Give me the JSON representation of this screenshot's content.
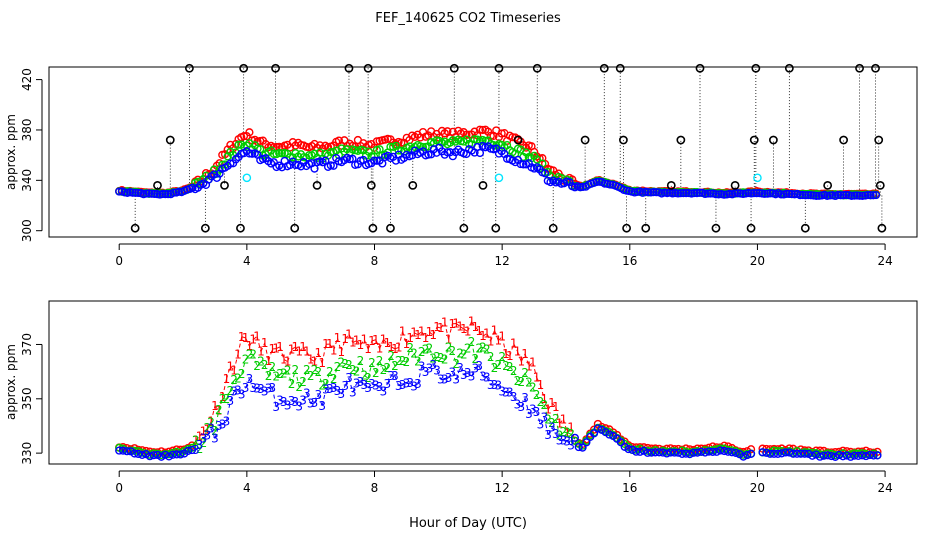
{
  "figure": {
    "title": "FEF_140625  CO2 Timeseries",
    "xlabel": "Hour of Day (UTC)"
  },
  "colors": {
    "series1": "#ff0000",
    "series2": "#00cc00",
    "series3": "#0000ff",
    "flagged": "#000000",
    "cyan": "#00e5ff"
  },
  "chart_data": [
    {
      "type": "scatter",
      "panel": "top",
      "ylabel": "approx. ppm",
      "xlim": [
        -2.2,
        25
      ],
      "ylim": [
        295,
        430
      ],
      "xticks": [
        0,
        4,
        8,
        12,
        16,
        20,
        24
      ],
      "yticks": [
        300,
        340,
        380,
        420
      ],
      "grid": false,
      "legend": "none",
      "profile": [
        [
          0,
          331
        ],
        [
          0.5,
          330
        ],
        [
          1,
          329
        ],
        [
          1.5,
          329
        ],
        [
          2,
          331
        ],
        [
          2.5,
          336
        ],
        [
          3,
          343
        ],
        [
          3.5,
          355
        ],
        [
          4,
          363
        ],
        [
          4.5,
          355
        ],
        [
          5,
          353
        ],
        [
          5.5,
          354
        ],
        [
          6,
          352
        ],
        [
          6.5,
          353
        ],
        [
          7,
          356
        ],
        [
          7.5,
          355
        ],
        [
          8,
          354
        ],
        [
          8.5,
          357
        ],
        [
          9,
          359
        ],
        [
          9.5,
          362
        ],
        [
          10,
          363
        ],
        [
          10.5,
          362
        ],
        [
          11,
          364
        ],
        [
          11.5,
          365
        ],
        [
          12,
          362
        ],
        [
          12.5,
          356
        ],
        [
          13,
          351
        ],
        [
          13.5,
          340
        ],
        [
          14,
          337
        ],
        [
          14.5,
          334
        ],
        [
          15,
          339
        ],
        [
          15.5,
          336
        ],
        [
          16,
          331
        ],
        [
          17,
          330
        ],
        [
          18,
          330
        ],
        [
          19,
          329
        ],
        [
          20,
          330
        ],
        [
          21,
          329
        ],
        [
          22,
          328
        ],
        [
          23,
          328
        ],
        [
          23.8,
          328
        ]
      ],
      "flagged_points": [
        [
          0.5,
          302
        ],
        [
          1.2,
          336
        ],
        [
          1.6,
          372
        ],
        [
          2.2,
          429
        ],
        [
          2.7,
          302
        ],
        [
          3.3,
          336
        ],
        [
          3.8,
          302
        ],
        [
          3.9,
          429
        ],
        [
          4.9,
          429
        ],
        [
          5.5,
          302
        ],
        [
          6.2,
          336
        ],
        [
          7.2,
          429
        ],
        [
          7.8,
          429
        ],
        [
          7.9,
          336
        ],
        [
          7.95,
          302
        ],
        [
          8.5,
          302
        ],
        [
          9.2,
          336
        ],
        [
          10.5,
          429
        ],
        [
          10.8,
          302
        ],
        [
          11.4,
          336
        ],
        [
          11.8,
          302
        ],
        [
          11.9,
          429
        ],
        [
          12.5,
          372
        ],
        [
          13.1,
          429
        ],
        [
          13.6,
          302
        ],
        [
          14.6,
          372
        ],
        [
          15.2,
          429
        ],
        [
          15.7,
          429
        ],
        [
          15.8,
          372
        ],
        [
          15.9,
          302
        ],
        [
          16.5,
          302
        ],
        [
          17.3,
          336
        ],
        [
          17.6,
          372
        ],
        [
          18.2,
          429
        ],
        [
          18.7,
          302
        ],
        [
          19.3,
          336
        ],
        [
          19.8,
          302
        ],
        [
          19.9,
          372
        ],
        [
          19.95,
          429
        ],
        [
          20.5,
          372
        ],
        [
          21,
          429
        ],
        [
          21.5,
          302
        ],
        [
          22.2,
          336
        ],
        [
          22.7,
          372
        ],
        [
          23.2,
          429
        ],
        [
          23.7,
          429
        ],
        [
          23.8,
          372
        ],
        [
          23.85,
          336
        ],
        [
          23.9,
          302
        ]
      ],
      "cyan_points": [
        [
          4,
          342
        ],
        [
          11.9,
          342
        ],
        [
          20,
          342
        ]
      ],
      "series": [
        {
          "name": "1",
          "color": "#ff0000",
          "offset_day": 14,
          "offset_night": 1
        },
        {
          "name": "2",
          "color": "#00cc00",
          "offset_day": 7,
          "offset_night": 0.5
        },
        {
          "name": "3",
          "color": "#0000ff",
          "offset_day": 0,
          "offset_night": 0
        }
      ]
    },
    {
      "type": "scatter",
      "panel": "bottom",
      "ylabel": "approx. ppm",
      "xlim": [
        -2.2,
        25
      ],
      "ylim": [
        326,
        386
      ],
      "xticks": [
        0,
        4,
        8,
        12,
        16,
        20,
        24
      ],
      "yticks": [
        330,
        350,
        370
      ],
      "grid": false,
      "legend": "none",
      "profile": [
        [
          0,
          331
        ],
        [
          0.5,
          330
        ],
        [
          1,
          329
        ],
        [
          1.5,
          329
        ],
        [
          2,
          330
        ],
        [
          2.5,
          332
        ],
        [
          3,
          337
        ],
        [
          3.5,
          348
        ],
        [
          4,
          357
        ],
        [
          4.5,
          352
        ],
        [
          5,
          350
        ],
        [
          5.5,
          350
        ],
        [
          6,
          349
        ],
        [
          6.5,
          351
        ],
        [
          7,
          355
        ],
        [
          7.5,
          354
        ],
        [
          8,
          352
        ],
        [
          8.5,
          355
        ],
        [
          9,
          357
        ],
        [
          9.5,
          359
        ],
        [
          10,
          360
        ],
        [
          10.5,
          358
        ],
        [
          11,
          360
        ],
        [
          11.5,
          358
        ],
        [
          12,
          354
        ],
        [
          12.5,
          350
        ],
        [
          13,
          346
        ],
        [
          13.5,
          338
        ],
        [
          14,
          335
        ],
        [
          14.5,
          332
        ],
        [
          15,
          339
        ],
        [
          15.5,
          336
        ],
        [
          16,
          331
        ],
        [
          17,
          330
        ],
        [
          18,
          330
        ],
        [
          19,
          331
        ],
        [
          19.5,
          329
        ],
        [
          20,
          330
        ],
        [
          21,
          330
        ],
        [
          22,
          329
        ],
        [
          23,
          329
        ],
        [
          23.8,
          329
        ]
      ],
      "gap_start": 19.8,
      "gap_end": 20.05,
      "series": [
        {
          "name": "1",
          "label": "1",
          "color": "#ff0000",
          "offset_day": 16,
          "offset_night": 1.5
        },
        {
          "name": "2",
          "label": "2",
          "color": "#00cc00",
          "offset_day": 8,
          "offset_night": 0.6
        },
        {
          "name": "3",
          "label": "3",
          "color": "#0000ff",
          "offset_day": 0,
          "offset_night": 0
        }
      ]
    }
  ]
}
